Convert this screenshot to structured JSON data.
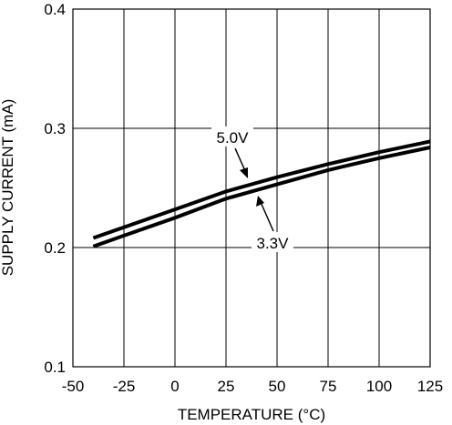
{
  "chart_data": {
    "type": "line",
    "xlabel": "TEMPERATURE (°C)",
    "ylabel": "SUPPLY CURRENT (mA)",
    "xlim": [
      -50,
      125
    ],
    "ylim": [
      0.1,
      0.4
    ],
    "x_ticks": [
      -50,
      -25,
      0,
      25,
      50,
      75,
      100,
      125
    ],
    "x_tick_labels": [
      "-50",
      "-25",
      "0",
      "25",
      "50",
      "75",
      "100",
      "125"
    ],
    "y_ticks": [
      0.1,
      0.2,
      0.3,
      0.4
    ],
    "y_tick_labels": [
      "0.1",
      "0.2",
      "0.3",
      "0.4"
    ],
    "grid": true,
    "series": [
      {
        "name": "5.0V",
        "x": [
          -40,
          -25,
          0,
          25,
          50,
          75,
          100,
          125
        ],
        "y": [
          0.208,
          0.217,
          0.232,
          0.247,
          0.259,
          0.27,
          0.28,
          0.289
        ]
      },
      {
        "name": "3.3V",
        "x": [
          -40,
          -25,
          0,
          25,
          50,
          75,
          100,
          125
        ],
        "y": [
          0.201,
          0.21,
          0.225,
          0.241,
          0.253,
          0.265,
          0.275,
          0.284
        ]
      }
    ]
  }
}
